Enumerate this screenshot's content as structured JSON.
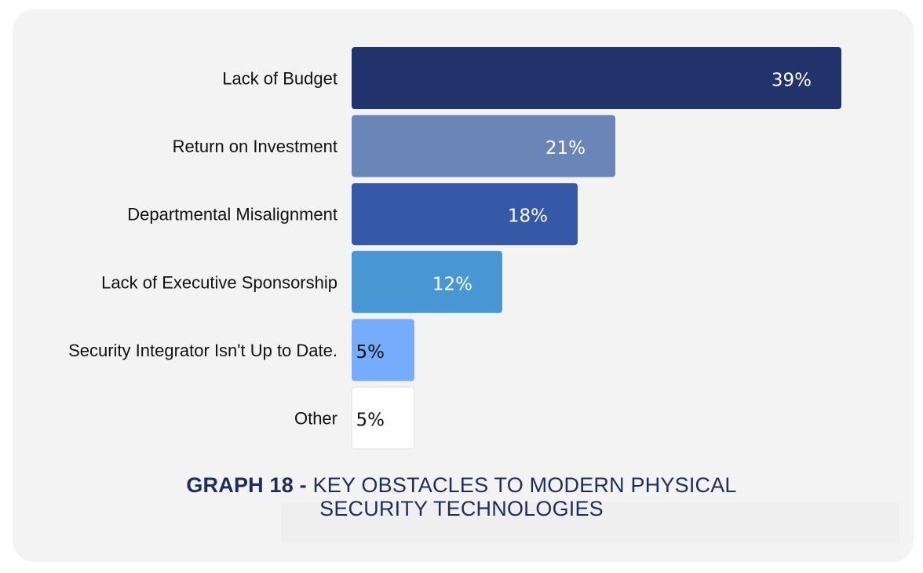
{
  "chart_data": {
    "type": "bar",
    "orientation": "horizontal",
    "categories": [
      "Lack of Budget",
      "Return on Investment",
      "Departmental Misalignment",
      "Lack of Executive Sponsorship",
      "Security Integrator Isn't Up to Date.",
      "Other"
    ],
    "values": [
      39,
      21,
      18,
      12,
      5,
      5
    ],
    "value_labels": [
      "39%",
      "21%",
      "18%",
      "12%",
      "5%",
      "5%"
    ],
    "colors": [
      "#22336b",
      "#6a86b8",
      "#3559a7",
      "#4896d2",
      "#75acfc",
      "#ffffff"
    ],
    "label_colors": [
      "#ffffff",
      "#ffffff",
      "#ffffff",
      "#ffffff",
      "#111111",
      "#111111"
    ],
    "unit": "%",
    "xlim": [
      0,
      39
    ],
    "grid": false,
    "legend": "none"
  },
  "caption": {
    "lead": "GRAPH 18 -",
    "line1": "KEY OBSTACLES TO MODERN PHYSICAL",
    "line2": "SECURITY TECHNOLOGIES"
  }
}
